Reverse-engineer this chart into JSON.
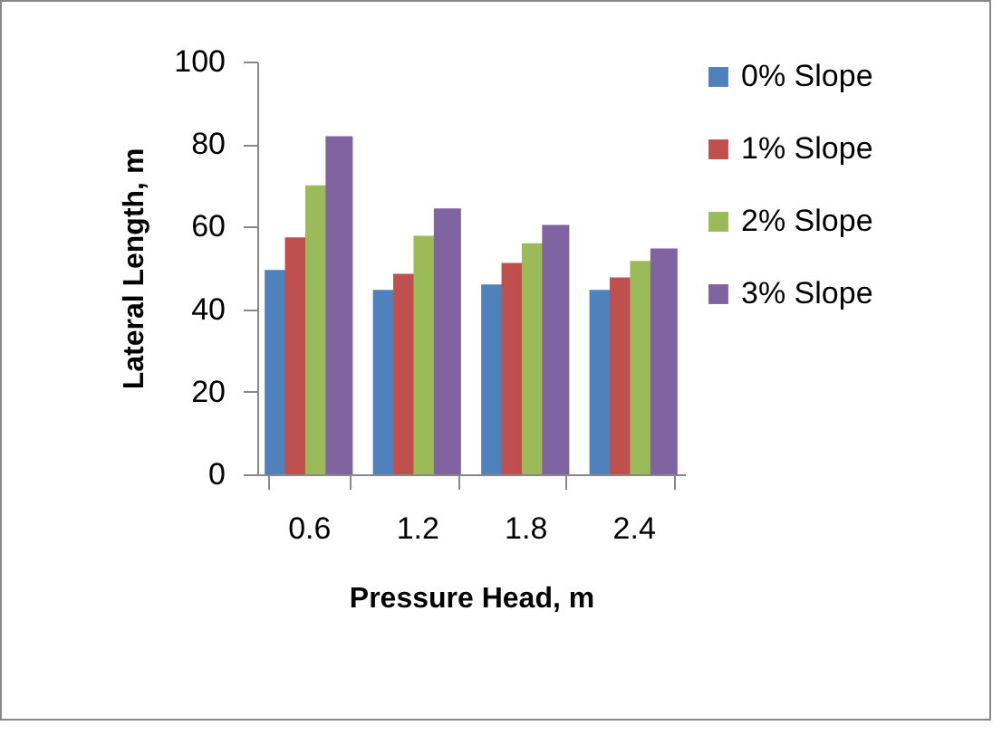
{
  "chart_data": {
    "type": "bar",
    "xlabel": "Pressure Head, m",
    "ylabel": "Lateral Length, m",
    "categories": [
      "0.6",
      "1.2",
      "1.8",
      "2.4"
    ],
    "series": [
      {
        "name": "0% Slope",
        "color": "#4f81bd",
        "values": [
          49.5,
          44.7,
          46,
          44.7
        ]
      },
      {
        "name": "1% Slope",
        "color": "#c0504d",
        "values": [
          57.4,
          48.6,
          51.2,
          47.7
        ]
      },
      {
        "name": "2% Slope",
        "color": "#9bbb59",
        "values": [
          70,
          57.8,
          56,
          51.7
        ]
      },
      {
        "name": "3% Slope",
        "color": "#8064a2",
        "values": [
          81.9,
          64.4,
          60.4,
          54.7
        ]
      }
    ],
    "ylim": [
      0,
      100
    ],
    "yticks": [
      0,
      20,
      40,
      60,
      80,
      100
    ],
    "legend": "right"
  }
}
